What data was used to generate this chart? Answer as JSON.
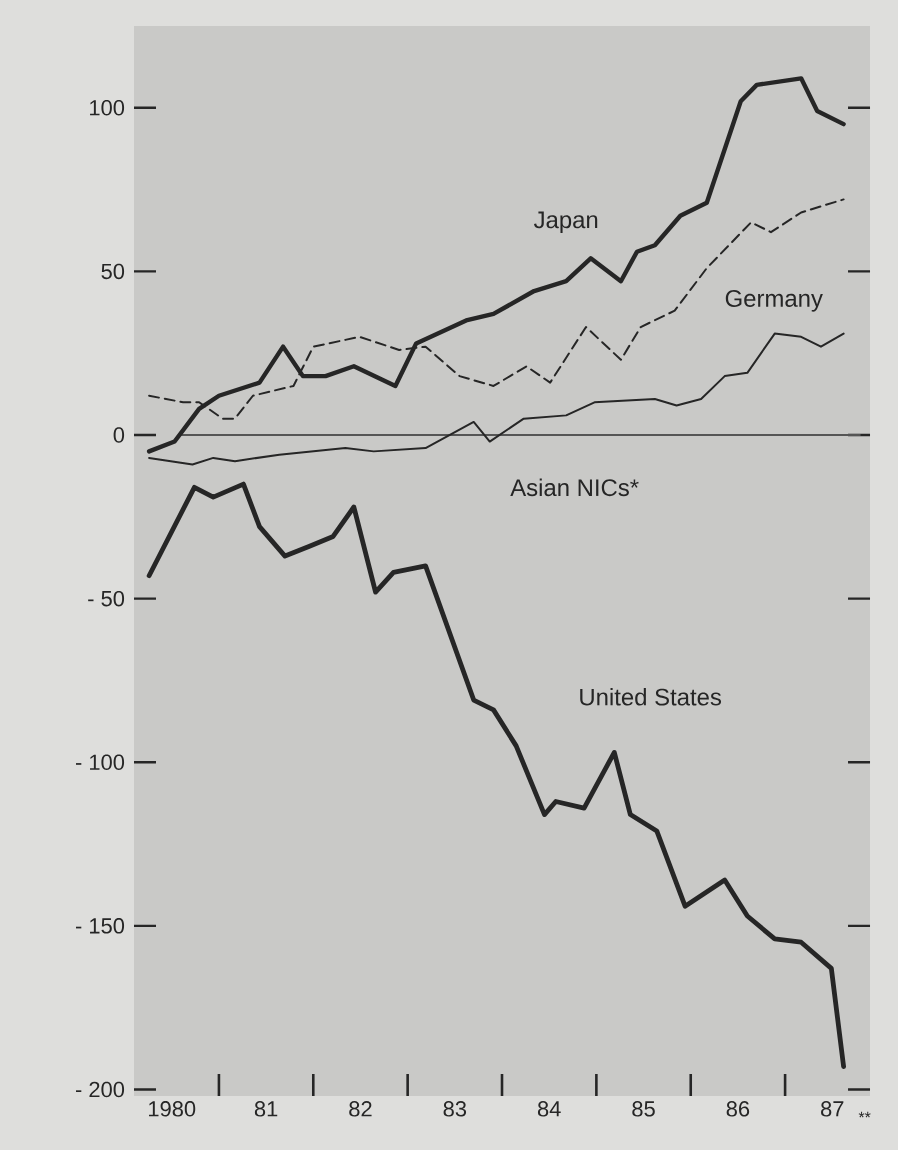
{
  "chart_data": {
    "type": "line",
    "xlim": [
      1979.6,
      1987.4
    ],
    "ylim": [
      -202,
      125
    ],
    "xticks": [
      {
        "value": 1980,
        "label": "1980"
      },
      {
        "value": 1980.5,
        "label": null
      },
      {
        "value": 1981,
        "label": "81"
      },
      {
        "value": 1981.5,
        "label": null
      },
      {
        "value": 1982,
        "label": "82"
      },
      {
        "value": 1982.5,
        "label": null
      },
      {
        "value": 1983,
        "label": "83"
      },
      {
        "value": 1983.5,
        "label": null
      },
      {
        "value": 1984,
        "label": "84"
      },
      {
        "value": 1984.5,
        "label": null
      },
      {
        "value": 1985,
        "label": "85"
      },
      {
        "value": 1985.5,
        "label": null
      },
      {
        "value": 1986,
        "label": "86"
      },
      {
        "value": 1986.5,
        "label": null
      },
      {
        "value": 1987,
        "label": "87"
      }
    ],
    "annotations": [
      "**"
    ],
    "yticks": [
      {
        "value": -200,
        "label": "- 200"
      },
      {
        "value": -150,
        "label": "- 150"
      },
      {
        "value": -100,
        "label": "- 100"
      },
      {
        "value": -50,
        "label": "- 50"
      },
      0,
      50,
      100
    ],
    "ref_lines": [
      {
        "axis": "y",
        "value": 0,
        "label": null,
        "color": "#555555"
      }
    ],
    "series": [
      {
        "name": "Japan",
        "color": "#262626",
        "line_style": "solid",
        "x": [
          1979.76,
          1980.03,
          1980.29,
          1980.5,
          1980.93,
          1981.18,
          1981.39,
          1981.63,
          1981.93,
          1982.37,
          1982.59,
          1983.12,
          1983.41,
          1983.84,
          1984.18,
          1984.44,
          1984.76,
          1984.93,
          1985.12,
          1985.39,
          1985.67,
          1986.03,
          1986.2,
          1986.67,
          1986.84,
          1987.12
        ],
        "values": [
          -5,
          -2,
          8,
          12,
          16,
          27,
          18,
          18,
          21,
          15,
          28,
          35,
          37,
          44,
          47,
          54,
          47,
          56,
          58,
          67,
          71,
          102,
          107,
          109,
          99,
          95
        ]
      },
      {
        "name": "Germany",
        "color": "#262626",
        "line_style": "dashed",
        "x": [
          1979.76,
          1980.12,
          1980.29,
          1980.54,
          1980.67,
          1980.86,
          1981.29,
          1981.5,
          1981.99,
          1982.41,
          1982.69,
          1983.05,
          1983.41,
          1983.76,
          1984.01,
          1984.39,
          1984.76,
          1984.97,
          1985.33,
          1985.67,
          1986.14,
          1986.35,
          1986.67,
          1987.12
        ],
        "values": [
          12,
          10,
          10,
          5,
          5,
          12,
          15,
          27,
          30,
          26,
          27,
          18,
          15,
          21,
          16,
          33,
          23,
          33,
          38,
          51,
          65,
          62,
          68,
          72
        ]
      },
      {
        "name": "Asian NICs*",
        "color": "#262626",
        "line_style": "solid",
        "x": [
          1979.76,
          1980.22,
          1980.44,
          1980.67,
          1981.14,
          1981.84,
          1982.14,
          1982.69,
          1983.2,
          1983.37,
          1983.73,
          1984.18,
          1984.48,
          1985.12,
          1985.35,
          1985.61,
          1985.86,
          1986.1,
          1986.39,
          1986.67,
          1986.88,
          1987.12
        ],
        "values": [
          -7,
          -9,
          -7,
          -8,
          -6,
          -4,
          -5,
          -4,
          4,
          -2,
          5,
          6,
          10,
          11,
          9,
          11,
          18,
          19,
          31,
          30,
          27,
          31
        ]
      },
      {
        "name": "United States",
        "color": "#262626",
        "line_style": "solid",
        "x": [
          1979.76,
          1980.24,
          1980.44,
          1980.76,
          1980.93,
          1981.2,
          1981.46,
          1981.71,
          1981.93,
          1982.16,
          1982.35,
          1982.69,
          1983.2,
          1983.41,
          1983.65,
          1983.95,
          1984.07,
          1984.37,
          1984.69,
          1984.86,
          1985.14,
          1985.44,
          1985.86,
          1986.1,
          1986.39,
          1986.67,
          1986.99,
          1987.12
        ],
        "values": [
          -43,
          -16,
          -19,
          -15,
          -28,
          -37,
          -34,
          -31,
          -22,
          -48,
          -42,
          -40,
          -81,
          -84,
          -95,
          -116,
          -112,
          -114,
          -97,
          -116,
          -121,
          -144,
          -136,
          -147,
          -154,
          -155,
          -163,
          -193
        ]
      }
    ]
  }
}
